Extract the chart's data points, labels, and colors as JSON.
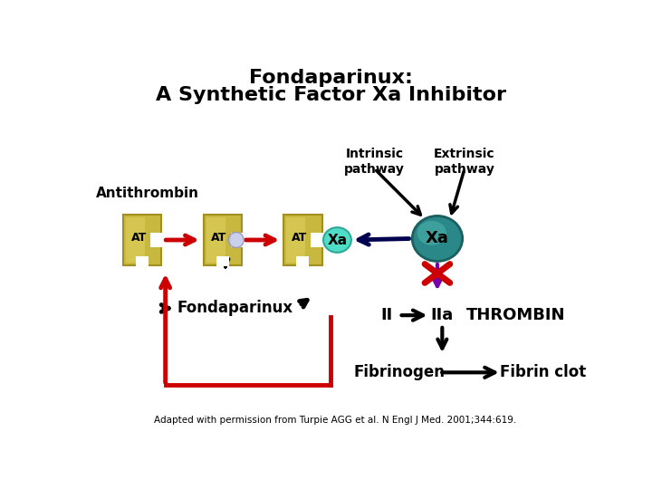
{
  "title_line1": "Fondaparinux:",
  "title_line2": "A Synthetic Factor Xa Inhibitor",
  "title_fontsize": 16,
  "bg_color": "#ffffff",
  "citation": "Adapted with permission from Turpie AGG et al. N Engl J Med. 2001;344:619.",
  "gold_color": "#c8b840",
  "gold_dark": "#a09020",
  "gold_light": "#e0d060",
  "teal_dark": "#2a8888",
  "teal_light": "#50b8b0",
  "cyan_bubble": "#50ddc8",
  "arrow_red": "#cc0000",
  "arrow_purple": "#660066",
  "arrow_navy": "#000060",
  "text_color": "#000000"
}
